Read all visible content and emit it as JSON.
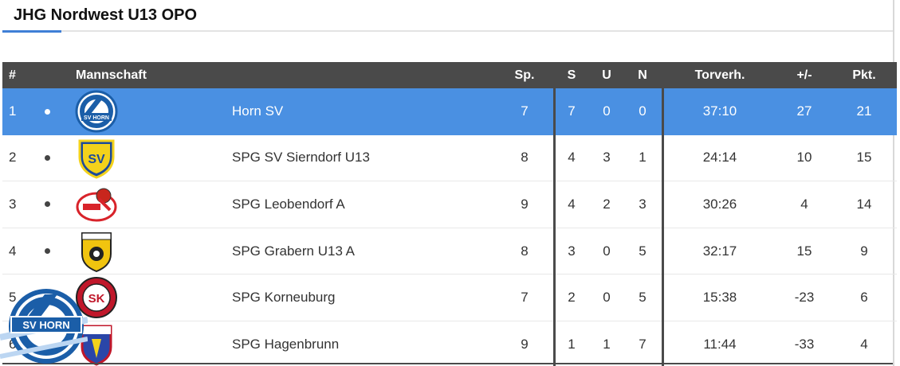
{
  "title": "JHG Nordwest U13 OPO",
  "columns": {
    "rank": "#",
    "team": "Mannschaft",
    "played": "Sp.",
    "won": "S",
    "draw": "U",
    "lost": "N",
    "goals": "Torverh.",
    "diff": "+/-",
    "points": "Pkt."
  },
  "rows": [
    {
      "rank": "1",
      "team": "Horn SV",
      "played": "7",
      "won": "7",
      "draw": "0",
      "lost": "0",
      "goals": "37:10",
      "diff": "27",
      "points": "21",
      "logo_text": "SV HORN"
    },
    {
      "rank": "2",
      "team": "SPG SV Sierndorf U13",
      "played": "8",
      "won": "4",
      "draw": "3",
      "lost": "1",
      "goals": "24:14",
      "diff": "10",
      "points": "15",
      "logo_text": "SV"
    },
    {
      "rank": "3",
      "team": "SPG Leobendorf A",
      "played": "9",
      "won": "4",
      "draw": "2",
      "lost": "3",
      "goals": "30:26",
      "diff": "4",
      "points": "14",
      "logo_text": ""
    },
    {
      "rank": "4",
      "team": "SPG Grabern U13 A",
      "played": "8",
      "won": "3",
      "draw": "0",
      "lost": "5",
      "goals": "32:17",
      "diff": "15",
      "points": "9",
      "logo_text": ""
    },
    {
      "rank": "5",
      "team": "SPG Korneuburg",
      "played": "7",
      "won": "2",
      "draw": "0",
      "lost": "5",
      "goals": "15:38",
      "diff": "-23",
      "points": "6",
      "logo_text": "SK"
    },
    {
      "rank": "6",
      "team": "SPG Hagenbrunn",
      "played": "9",
      "won": "1",
      "draw": "1",
      "lost": "7",
      "goals": "11:44",
      "diff": "-33",
      "points": "4",
      "logo_text": ""
    }
  ],
  "colors": {
    "header_bg": "#4a4a4a",
    "highlight_bg": "#4a90e2",
    "accent": "#3f7fd6"
  },
  "overlay_logo_text": "SV HORN"
}
